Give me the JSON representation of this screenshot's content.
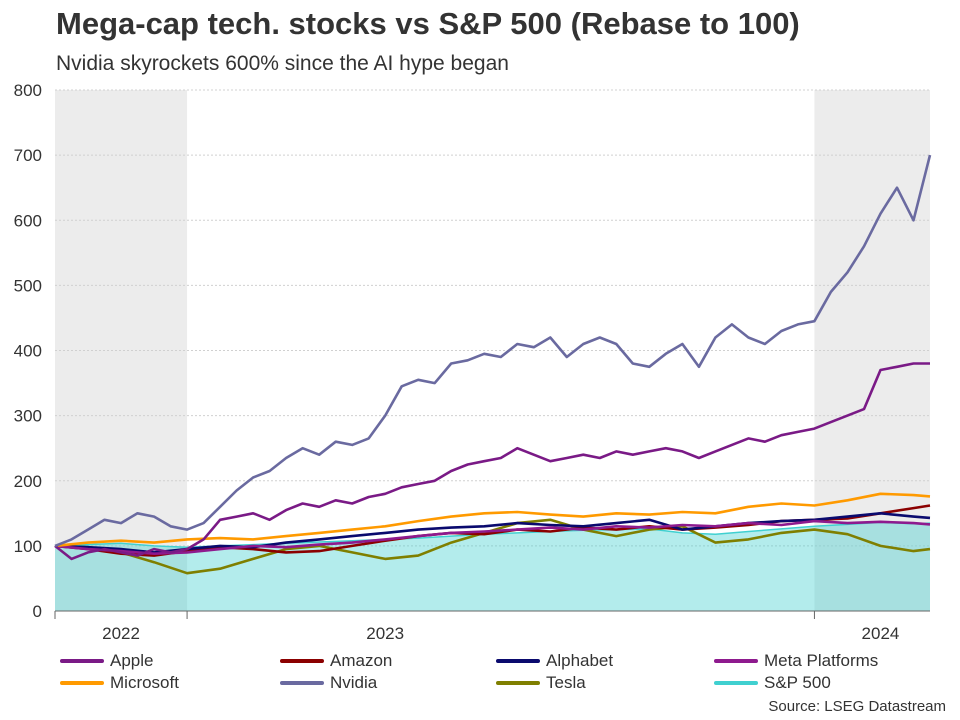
{
  "header": {
    "title": "Mega-cap tech. stocks vs S&P 500 (Rebase to 100)",
    "subtitle": "Nvidia skyrockets 600% since the AI hype began"
  },
  "source": "Source: LSEG Datastream",
  "colors": {
    "Apple": "#7a1a86",
    "Amazon": "#8b0000",
    "Alphabet": "#0a0a6e",
    "Meta Platforms": "#8e1a8e",
    "Microsoft": "#ff9a00",
    "Nvidia": "#6a6aa0",
    "Tesla": "#7f7f00",
    "S&P 500": "#40d0d0"
  },
  "chart_data": {
    "type": "line",
    "title": "Mega-cap tech. stocks vs S&P 500 (Rebase to 100)",
    "subtitle": "Nvidia skyrockets 600% since the AI hype began",
    "ylabel": "",
    "xlabel": "",
    "ylim": [
      0,
      800
    ],
    "yticks": [
      0,
      100,
      200,
      300,
      400,
      500,
      600,
      700,
      800
    ],
    "xlim": [
      0,
      26.5
    ],
    "x_unit": "months since 2022-09-01",
    "year_labels": [
      {
        "label": "2022",
        "x": 2
      },
      {
        "label": "2023",
        "x": 10
      },
      {
        "label": "2024",
        "x": 25
      }
    ],
    "year_dividers": [
      4,
      23
    ],
    "shaded_periods": [
      [
        0,
        4
      ],
      [
        23,
        26.5
      ]
    ],
    "grid": true,
    "legend_position": "bottom",
    "series": [
      {
        "name": "Nvidia",
        "x": [
          0,
          0.5,
          1,
          1.5,
          2,
          2.5,
          3,
          3.5,
          4,
          4.5,
          5,
          5.5,
          6,
          6.5,
          7,
          7.5,
          8,
          8.5,
          9,
          9.5,
          10,
          10.5,
          11,
          11.5,
          12,
          12.5,
          13,
          13.5,
          14,
          14.5,
          15,
          15.5,
          16,
          16.5,
          17,
          17.5,
          18,
          18.5,
          19,
          19.5,
          20,
          20.5,
          21,
          21.5,
          22,
          22.5,
          23,
          23.5,
          24,
          24.5,
          25,
          25.5,
          26,
          26.5
        ],
        "values": [
          100,
          110,
          125,
          140,
          135,
          150,
          145,
          130,
          125,
          135,
          160,
          185,
          205,
          215,
          235,
          250,
          240,
          260,
          255,
          265,
          300,
          345,
          355,
          350,
          380,
          385,
          395,
          390,
          410,
          405,
          420,
          390,
          410,
          420,
          410,
          380,
          375,
          395,
          410,
          375,
          420,
          440,
          420,
          410,
          430,
          440,
          445,
          490,
          520,
          560,
          610,
          650,
          600,
          700
        ]
      },
      {
        "name": "Apple",
        "x": [
          0,
          0.5,
          1,
          1.5,
          2,
          2.5,
          3,
          3.5,
          4,
          4.5,
          5,
          5.5,
          6,
          6.5,
          7,
          7.5,
          8,
          8.5,
          9,
          9.5,
          10,
          10.5,
          11,
          11.5,
          12,
          12.5,
          13,
          13.5,
          14,
          14.5,
          15,
          15.5,
          16,
          16.5,
          17,
          17.5,
          18,
          18.5,
          19,
          19.5,
          20,
          20.5,
          21,
          21.5,
          22,
          22.5,
          23,
          23.5,
          24,
          24.5,
          25,
          25.5,
          26,
          26.5
        ],
        "values": [
          100,
          80,
          90,
          95,
          90,
          85,
          95,
          90,
          95,
          110,
          140,
          145,
          150,
          140,
          155,
          165,
          160,
          170,
          165,
          175,
          180,
          190,
          195,
          200,
          215,
          225,
          230,
          235,
          250,
          240,
          230,
          235,
          240,
          235,
          245,
          240,
          245,
          250,
          245,
          235,
          245,
          255,
          265,
          260,
          270,
          275,
          280,
          290,
          300,
          310,
          370,
          375,
          380,
          380
        ]
      },
      {
        "name": "Meta Platforms",
        "x": [
          0,
          1,
          2,
          3,
          4,
          5,
          6,
          7,
          8,
          9,
          10,
          11,
          12,
          13,
          14,
          15,
          16,
          17,
          18,
          19,
          20,
          21,
          22,
          23,
          24,
          25,
          26,
          26.5
        ],
        "values": [
          100,
          95,
          92,
          88,
          90,
          95,
          100,
          98,
          102,
          105,
          110,
          115,
          120,
          122,
          125,
          128,
          125,
          130,
          128,
          132,
          130,
          135,
          132,
          138,
          135,
          137,
          135,
          133
        ]
      },
      {
        "name": "Microsoft",
        "x": [
          0,
          1,
          2,
          3,
          4,
          5,
          6,
          7,
          8,
          9,
          10,
          11,
          12,
          13,
          14,
          15,
          16,
          17,
          18,
          19,
          20,
          21,
          22,
          23,
          24,
          25,
          26,
          26.5
        ],
        "values": [
          100,
          105,
          108,
          105,
          110,
          112,
          110,
          115,
          120,
          125,
          130,
          138,
          145,
          150,
          152,
          148,
          145,
          150,
          148,
          152,
          150,
          160,
          165,
          162,
          170,
          180,
          178,
          176
        ]
      },
      {
        "name": "Alphabet",
        "x": [
          0,
          1,
          2,
          3,
          4,
          5,
          6,
          7,
          8,
          9,
          10,
          11,
          12,
          13,
          14,
          15,
          16,
          17,
          18,
          19,
          20,
          21,
          22,
          23,
          24,
          25,
          26,
          26.5
        ],
        "values": [
          100,
          98,
          95,
          90,
          95,
          100,
          98,
          105,
          110,
          115,
          120,
          125,
          128,
          130,
          135,
          132,
          130,
          135,
          140,
          125,
          130,
          135,
          138,
          140,
          145,
          150,
          145,
          143
        ]
      },
      {
        "name": "Amazon",
        "x": [
          0,
          1,
          2,
          3,
          4,
          5,
          6,
          7,
          8,
          9,
          10,
          11,
          12,
          13,
          14,
          15,
          16,
          17,
          18,
          19,
          20,
          21,
          22,
          23,
          24,
          25,
          26,
          26.5
        ],
        "values": [
          100,
          95,
          88,
          85,
          92,
          98,
          95,
          90,
          92,
          100,
          108,
          115,
          120,
          118,
          125,
          122,
          128,
          125,
          130,
          125,
          128,
          132,
          138,
          140,
          142,
          150,
          158,
          162
        ]
      },
      {
        "name": "Tesla",
        "x": [
          0,
          1,
          2,
          3,
          4,
          5,
          6,
          7,
          8,
          9,
          10,
          11,
          12,
          13,
          14,
          15,
          16,
          17,
          18,
          19,
          20,
          21,
          22,
          23,
          24,
          25,
          26,
          26.5
        ],
        "values": [
          100,
          98,
          90,
          75,
          58,
          65,
          80,
          95,
          100,
          90,
          80,
          85,
          105,
          120,
          135,
          140,
          125,
          115,
          125,
          130,
          105,
          110,
          120,
          125,
          118,
          100,
          92,
          95
        ]
      },
      {
        "name": "S&P 500",
        "x": [
          0,
          1,
          2,
          3,
          4,
          5,
          6,
          7,
          8,
          9,
          10,
          11,
          12,
          13,
          14,
          15,
          16,
          17,
          18,
          19,
          20,
          21,
          22,
          23,
          24,
          25,
          26,
          26.5
        ],
        "values": [
          100,
          102,
          104,
          100,
          98,
          100,
          102,
          104,
          106,
          108,
          110,
          112,
          115,
          118,
          120,
          122,
          124,
          125,
          126,
          120,
          118,
          122,
          126,
          130,
          133,
          136,
          134,
          135
        ]
      }
    ]
  },
  "legend": [
    {
      "name": "Apple"
    },
    {
      "name": "Amazon"
    },
    {
      "name": "Alphabet"
    },
    {
      "name": "Meta Platforms"
    },
    {
      "name": "Microsoft"
    },
    {
      "name": "Nvidia"
    },
    {
      "name": "Tesla"
    },
    {
      "name": "S&P 500"
    }
  ]
}
